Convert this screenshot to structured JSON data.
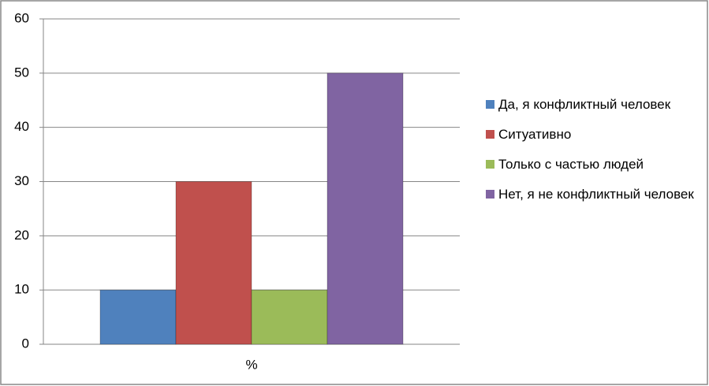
{
  "chart_data": {
    "type": "bar",
    "categories": [
      "%"
    ],
    "series": [
      {
        "name": "Да, я конфликтный человек",
        "color": "#4f81bd",
        "values": [
          10
        ]
      },
      {
        "name": "Ситуативно",
        "color": "#c0504d",
        "values": [
          30
        ]
      },
      {
        "name": "Только с частью людей",
        "color": "#9bbb59",
        "values": [
          10
        ]
      },
      {
        "name": "Нет, я не конфликтный человек",
        "color": "#8064a2",
        "values": [
          50
        ]
      }
    ],
    "ylim": [
      0,
      60
    ],
    "yticks": [
      0,
      10,
      20,
      30,
      40,
      50,
      60
    ],
    "grid": true,
    "legend": "right"
  }
}
